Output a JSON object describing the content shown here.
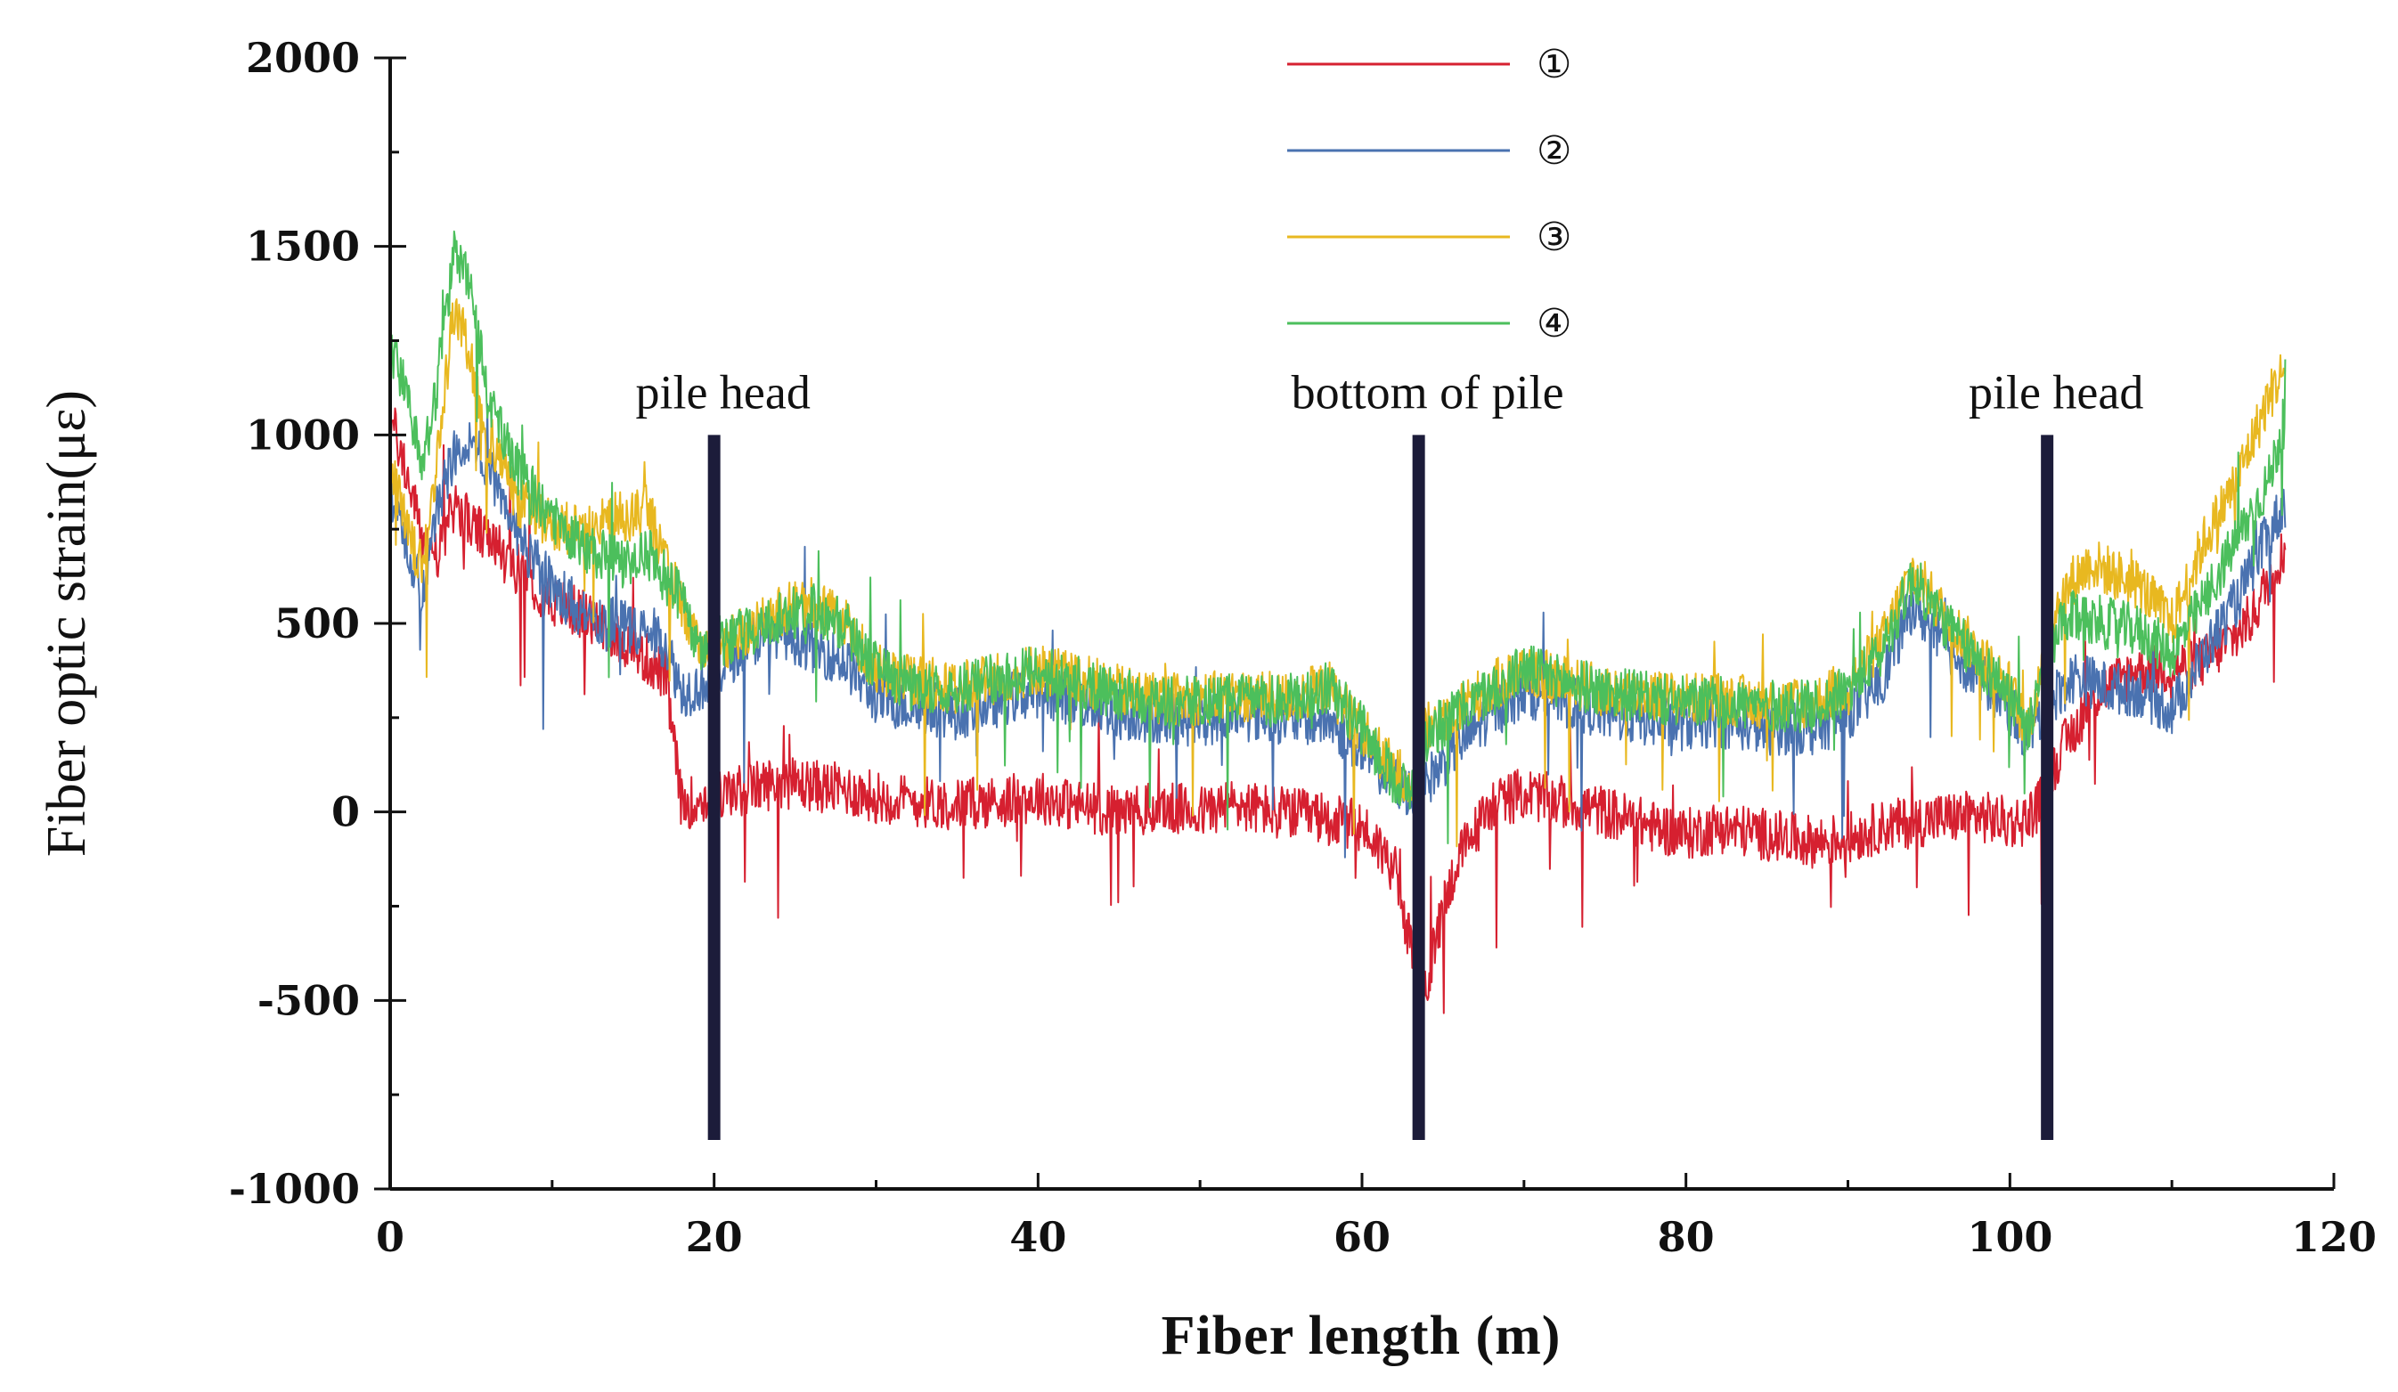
{
  "chart_data": {
    "type": "line",
    "title": "",
    "xlabel": "Fiber length (m)",
    "ylabel": "Fiber optic strain(με)",
    "xlim": [
      0,
      120
    ],
    "ylim": [
      -1000,
      2000
    ],
    "xticks": [
      0,
      20,
      40,
      60,
      80,
      100,
      120
    ],
    "yticks": [
      -1000,
      -500,
      0,
      500,
      1000,
      1500,
      2000
    ],
    "grid": false,
    "legend_position": "top-center",
    "series": [
      {
        "name": "①",
        "color": "#d62030",
        "x": [
          0,
          1,
          2,
          3,
          4,
          5,
          6,
          8,
          10,
          12,
          14,
          15,
          16,
          17,
          18,
          20,
          22,
          24,
          26,
          28,
          30,
          32,
          35,
          38,
          40,
          42,
          45,
          48,
          50,
          52,
          55,
          58,
          60,
          61,
          62,
          63,
          64,
          65,
          66,
          68,
          70,
          72,
          75,
          78,
          80,
          82,
          85,
          88,
          90,
          92,
          95,
          98,
          100,
          101,
          102,
          103,
          104,
          105,
          106,
          108,
          110,
          112,
          114,
          115,
          116,
          117
        ],
        "values": [
          1050,
          900,
          720,
          680,
          820,
          760,
          720,
          640,
          560,
          520,
          470,
          430,
          400,
          360,
          20,
          40,
          60,
          80,
          70,
          60,
          40,
          30,
          20,
          30,
          40,
          20,
          0,
          10,
          0,
          20,
          0,
          -20,
          -40,
          -90,
          -150,
          -360,
          -460,
          -250,
          -120,
          20,
          50,
          30,
          0,
          -40,
          -60,
          -40,
          -60,
          -80,
          -70,
          -40,
          -20,
          -10,
          -30,
          -20,
          30,
          150,
          220,
          300,
          330,
          380,
          380,
          400,
          470,
          520,
          620,
          700
        ]
      },
      {
        "name": "②",
        "color": "#4a72b0",
        "x": [
          0,
          1,
          2,
          3,
          4,
          5,
          6,
          8,
          10,
          12,
          14,
          16,
          17,
          18,
          19,
          20,
          22,
          24,
          26,
          28,
          30,
          32,
          35,
          38,
          40,
          42,
          45,
          48,
          50,
          52,
          55,
          58,
          60,
          61,
          62,
          63,
          64,
          66,
          68,
          70,
          72,
          75,
          78,
          80,
          82,
          85,
          88,
          90,
          92,
          94,
          96,
          98,
          100,
          101,
          102,
          103,
          104,
          106,
          108,
          110,
          112,
          114,
          116,
          117
        ],
        "values": [
          860,
          700,
          580,
          820,
          960,
          1000,
          920,
          720,
          600,
          520,
          500,
          480,
          450,
          320,
          330,
          360,
          450,
          480,
          440,
          400,
          300,
          280,
          260,
          300,
          320,
          300,
          260,
          250,
          240,
          260,
          250,
          240,
          160,
          120,
          80,
          50,
          80,
          180,
          260,
          320,
          300,
          260,
          240,
          230,
          240,
          220,
          220,
          260,
          340,
          550,
          440,
          360,
          280,
          200,
          260,
          320,
          360,
          330,
          320,
          270,
          420,
          560,
          740,
          820
        ]
      },
      {
        "name": "③",
        "color": "#e8b820",
        "x": [
          0,
          1,
          2,
          3,
          4,
          5,
          6,
          8,
          10,
          12,
          14,
          16,
          17,
          18,
          19,
          20,
          22,
          24,
          26,
          28,
          30,
          32,
          35,
          38,
          40,
          42,
          45,
          48,
          50,
          52,
          55,
          58,
          60,
          61,
          62,
          63,
          64,
          66,
          68,
          70,
          72,
          75,
          78,
          80,
          82,
          85,
          88,
          90,
          92,
          94,
          96,
          98,
          100,
          101,
          102,
          103,
          104,
          105,
          106,
          108,
          110,
          112,
          114,
          116,
          117
        ],
        "values": [
          920,
          760,
          640,
          980,
          1350,
          1200,
          1000,
          820,
          760,
          740,
          780,
          800,
          650,
          560,
          440,
          430,
          480,
          530,
          560,
          500,
          380,
          350,
          330,
          360,
          380,
          360,
          320,
          300,
          300,
          310,
          300,
          330,
          220,
          160,
          110,
          80,
          220,
          280,
          330,
          380,
          350,
          320,
          310,
          300,
          300,
          290,
          290,
          340,
          440,
          640,
          520,
          420,
          330,
          220,
          360,
          560,
          620,
          660,
          640,
          600,
          500,
          720,
          880,
          1100,
          1180
        ]
      },
      {
        "name": "④",
        "color": "#4cbf5c",
        "x": [
          0,
          1,
          2,
          3,
          4,
          5,
          6,
          8,
          10,
          12,
          14,
          16,
          17,
          18,
          19,
          20,
          22,
          24,
          26,
          28,
          30,
          32,
          35,
          38,
          40,
          42,
          45,
          48,
          50,
          52,
          55,
          58,
          60,
          61,
          62,
          63,
          64,
          66,
          68,
          70,
          72,
          75,
          78,
          80,
          82,
          85,
          88,
          90,
          92,
          94,
          96,
          98,
          100,
          101,
          102,
          103,
          104,
          106,
          108,
          110,
          112,
          114,
          116,
          117
        ],
        "values": [
          1250,
          1100,
          920,
          1150,
          1500,
          1380,
          1100,
          900,
          780,
          700,
          660,
          680,
          620,
          560,
          440,
          420,
          480,
          520,
          540,
          500,
          380,
          340,
          320,
          360,
          370,
          350,
          310,
          290,
          290,
          300,
          290,
          330,
          220,
          150,
          90,
          50,
          200,
          270,
          320,
          380,
          350,
          320,
          300,
          290,
          290,
          280,
          280,
          320,
          420,
          620,
          500,
          400,
          320,
          200,
          340,
          480,
          520,
          500,
          480,
          420,
          560,
          720,
          880,
          1050
        ]
      }
    ],
    "annotations": [
      {
        "label": "pile head",
        "x": 20
      },
      {
        "label": "bottom of pile",
        "x": 63.5
      },
      {
        "label": "pile head",
        "x": 102.3
      }
    ]
  }
}
